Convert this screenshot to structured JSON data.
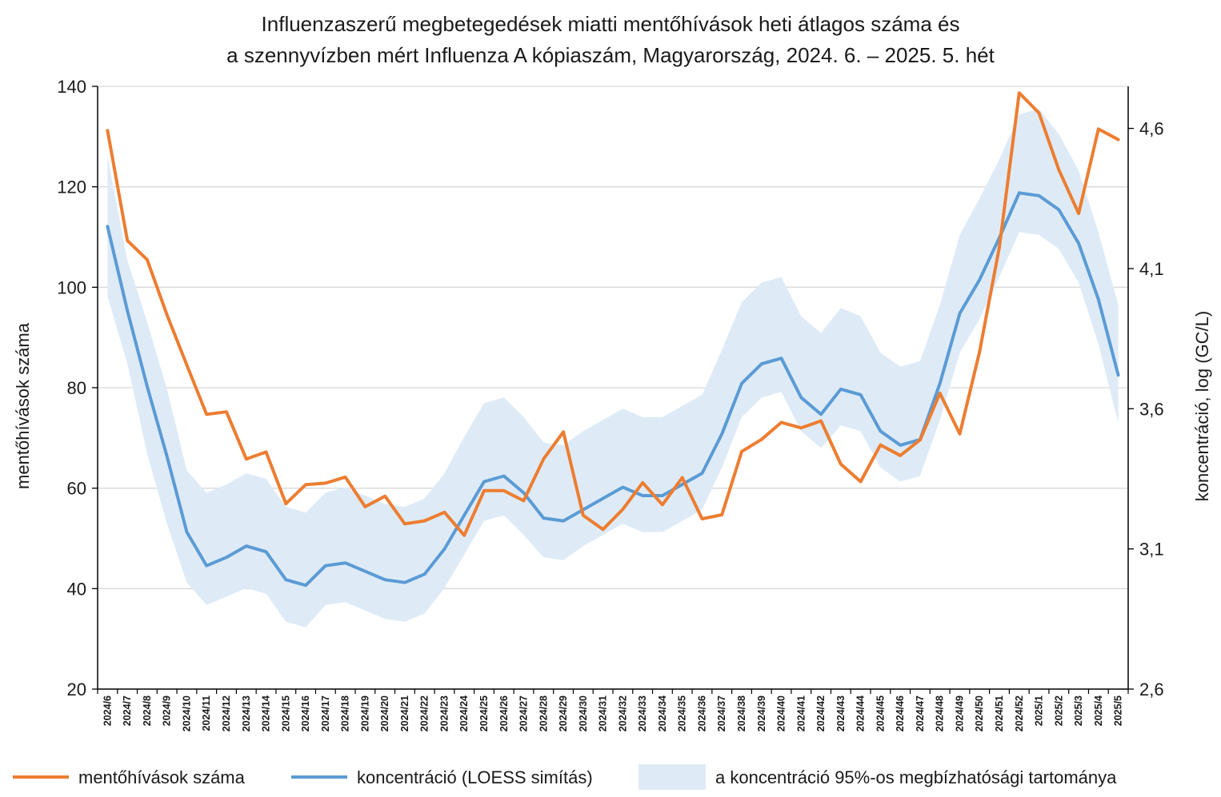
{
  "chart_data": {
    "type": "line",
    "title_lines": [
      "Influenzaszerű megbetegedések miatti mentőhívások heti átlagos száma és",
      "a szennyvízben mért Influenza A kópiaszám, Magyarország, 2024. 6. – 2025. 5. hét"
    ],
    "ylabel": "mentőhívások száma",
    "y2label": "koncentráció, log (GC/L)",
    "ylim": [
      20,
      140
    ],
    "yticks": [
      "20",
      "40",
      "60",
      "80",
      "100",
      "120",
      "140"
    ],
    "y2lim": [
      2.6,
      4.75
    ],
    "y2ticks": [
      "2,6",
      "3,1",
      "3,6",
      "4,1",
      "4,6"
    ],
    "grid": true,
    "categories": [
      "2024/6",
      "2024/7",
      "2024/8",
      "2024/9",
      "2024/10",
      "2024/11",
      "2024/12",
      "2024/13",
      "2024/14",
      "2024/15",
      "2024/16",
      "2024/17",
      "2024/18",
      "2024/19",
      "2024/20",
      "2024/21",
      "2024/22",
      "2024/23",
      "2024/24",
      "2024/25",
      "2024/26",
      "2024/27",
      "2024/28",
      "2024/29",
      "2024/30",
      "2024/31",
      "2024/32",
      "2024/33",
      "2024/34",
      "2024/35",
      "2024/36",
      "2024/37",
      "2024/38",
      "2024/39",
      "2024/40",
      "2024/41",
      "2024/42",
      "2024/43",
      "2024/44",
      "2024/45",
      "2024/46",
      "2024/47",
      "2024/48",
      "2024/49",
      "2024/50",
      "2024/51",
      "2024/52",
      "2025/1",
      "2025/2",
      "2025/3",
      "2025/4",
      "2025/5"
    ],
    "series": [
      {
        "name": "mentőhívások száma",
        "axis": "left",
        "color": "#ED7D31",
        "values": [
          131.2,
          109.3,
          105.5,
          94.5,
          84.5,
          74.7,
          75.2,
          65.8,
          67.2,
          56.9,
          60.7,
          61.0,
          62.2,
          56.3,
          58.4,
          52.9,
          53.5,
          55.2,
          50.6,
          59.5,
          59.5,
          57.5,
          65.8,
          71.2,
          54.6,
          51.8,
          55.8,
          61.1,
          56.7,
          62.1,
          53.9,
          54.7,
          67.3,
          69.7,
          73.1,
          72.0,
          73.4,
          64.8,
          61.3,
          68.6,
          66.5,
          69.6,
          78.9,
          70.8,
          87.1,
          108.0,
          138.7,
          134.7,
          123.4,
          114.7,
          131.5,
          129.4
        ]
      },
      {
        "name": "koncentráció (LOESS simítás)",
        "axis": "right",
        "color": "#5B9BD5",
        "values": [
          4.25,
          3.95,
          3.68,
          3.43,
          3.16,
          3.04,
          3.07,
          3.11,
          3.09,
          2.99,
          2.97,
          3.04,
          3.05,
          3.02,
          2.99,
          2.98,
          3.01,
          3.1,
          3.22,
          3.34,
          3.36,
          3.3,
          3.21,
          3.2,
          3.24,
          3.28,
          3.32,
          3.29,
          3.29,
          3.33,
          3.37,
          3.51,
          3.69,
          3.76,
          3.78,
          3.64,
          3.58,
          3.67,
          3.65,
          3.52,
          3.47,
          3.49,
          3.69,
          3.94,
          4.06,
          4.21,
          4.37,
          4.36,
          4.31,
          4.19,
          3.99,
          3.72
        ]
      }
    ],
    "band": {
      "name": "a koncentráció 95%-os megbízhatósági tartománya",
      "axis": "right",
      "color": "#DEEBF7",
      "lower": [
        4.0,
        3.76,
        3.44,
        3.19,
        2.98,
        2.9,
        2.93,
        2.96,
        2.94,
        2.84,
        2.82,
        2.9,
        2.91,
        2.88,
        2.85,
        2.84,
        2.87,
        2.96,
        3.08,
        3.2,
        3.22,
        3.15,
        3.07,
        3.06,
        3.11,
        3.15,
        3.19,
        3.16,
        3.16,
        3.2,
        3.24,
        3.39,
        3.57,
        3.64,
        3.66,
        3.52,
        3.46,
        3.54,
        3.52,
        3.39,
        3.34,
        3.36,
        3.56,
        3.8,
        3.92,
        4.07,
        4.23,
        4.22,
        4.17,
        4.05,
        3.83,
        3.55
      ],
      "upper": [
        4.5,
        4.13,
        3.91,
        3.67,
        3.38,
        3.3,
        3.33,
        3.37,
        3.35,
        3.25,
        3.23,
        3.3,
        3.32,
        3.29,
        3.26,
        3.25,
        3.28,
        3.37,
        3.5,
        3.62,
        3.64,
        3.57,
        3.48,
        3.47,
        3.52,
        3.56,
        3.6,
        3.57,
        3.57,
        3.61,
        3.65,
        3.81,
        3.98,
        4.05,
        4.07,
        3.93,
        3.87,
        3.96,
        3.93,
        3.8,
        3.75,
        3.77,
        3.97,
        4.22,
        4.35,
        4.49,
        4.65,
        4.67,
        4.58,
        4.45,
        4.23,
        3.97
      ]
    }
  },
  "legend": {
    "items": [
      {
        "label": "mentőhívások száma",
        "color": "#ED7D31",
        "kind": "line"
      },
      {
        "label": "koncentráció (LOESS simítás)",
        "color": "#5B9BD5",
        "kind": "line"
      },
      {
        "label": "a koncentráció 95%-os megbízhatósági tartománya",
        "color": "#DEEBF7",
        "kind": "area"
      }
    ]
  }
}
